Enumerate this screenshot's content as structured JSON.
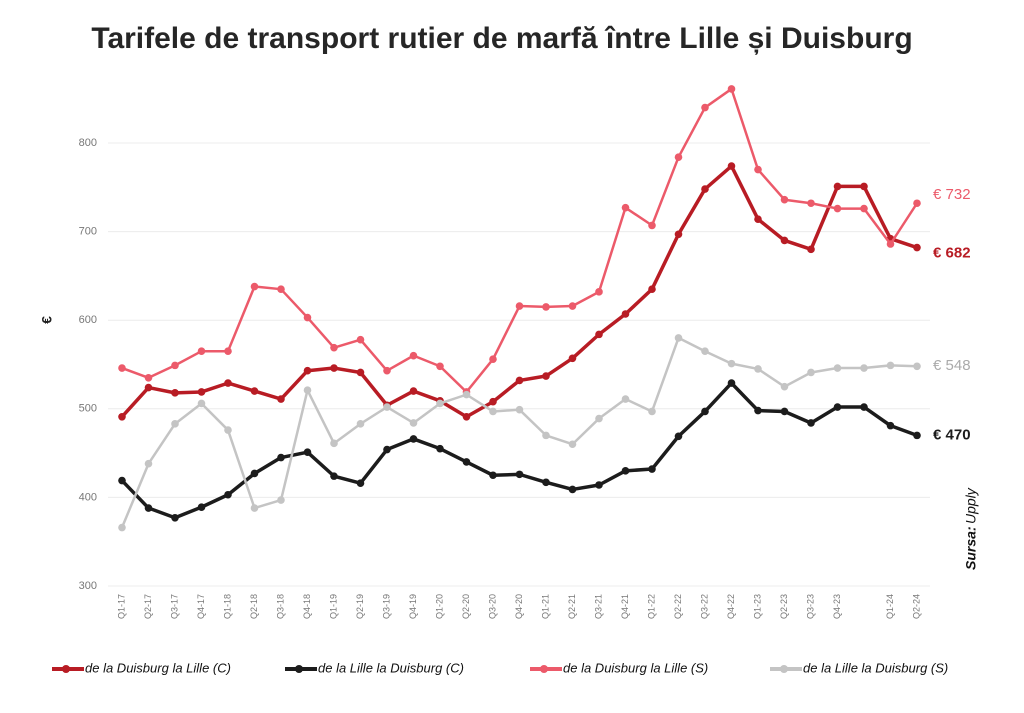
{
  "chart_data": {
    "type": "line",
    "title": "Tarifele de transport rutier de marfă între Lille și Duisburg",
    "y_label": "€",
    "source_label": "Sursa:",
    "source": "Upply",
    "categories": [
      "Q1-17",
      "Q2-17",
      "Q3-17",
      "Q4-17",
      "Q1-18",
      "Q2-18",
      "Q3-18",
      "Q4-18",
      "Q1-19",
      "Q2-19",
      "Q3-19",
      "Q4-19",
      "Q1-20",
      "Q2-20",
      "Q3-20",
      "Q4-20",
      "Q1-21",
      "Q2-21",
      "Q3-21",
      "Q4-21",
      "Q1-22",
      "Q2-22",
      "Q3-22",
      "Q4-22",
      "Q1-23",
      "Q2-23",
      "Q3-23",
      "Q4-23",
      null,
      "Q1-24",
      "Q2-24"
    ],
    "series": [
      {
        "name": "de la Duisburg la Lille (C)",
        "color": "#b81c24",
        "width": 3.5,
        "bold_label": true,
        "values": [
          491,
          524,
          518,
          519,
          529,
          520,
          511,
          543,
          546,
          541,
          504,
          520,
          509,
          491,
          508,
          532,
          537,
          557,
          584,
          607,
          635,
          697,
          748,
          774,
          714,
          690,
          680,
          751,
          751,
          692,
          682
        ],
        "value_labels": [
          null,
          null,
          null,
          null,
          null,
          null,
          null,
          null,
          null,
          null,
          null,
          null,
          null,
          null,
          null,
          null,
          null,
          null,
          null,
          null,
          null,
          null,
          null,
          null,
          null,
          null,
          null,
          null,
          null,
          null,
          "€ 682"
        ]
      },
      {
        "name": "de la Lille la Duisburg (C)",
        "color": "#1c1c1c",
        "width": 3.5,
        "bold_label": true,
        "values": [
          419,
          388,
          377,
          389,
          403,
          427,
          445,
          451,
          424,
          416,
          454,
          466,
          455,
          440,
          425,
          426,
          417,
          409,
          414,
          430,
          432,
          469,
          497,
          529,
          498,
          497,
          484,
          502,
          502,
          481,
          470
        ],
        "value_labels": [
          null,
          null,
          null,
          null,
          null,
          null,
          null,
          null,
          null,
          null,
          null,
          null,
          null,
          null,
          null,
          null,
          null,
          null,
          null,
          null,
          null,
          null,
          null,
          null,
          null,
          null,
          null,
          null,
          null,
          null,
          "€ 470"
        ]
      },
      {
        "name": "de la Duisburg la Lille (S)",
        "color": "#ec5a6a",
        "width": 2.5,
        "bold_label": false,
        "values": [
          546,
          535,
          549,
          565,
          565,
          638,
          635,
          603,
          569,
          578,
          543,
          560,
          548,
          519,
          556,
          616,
          615,
          616,
          632,
          727,
          707,
          784,
          840,
          861,
          770,
          736,
          732,
          726,
          726,
          686,
          732
        ],
        "value_labels": [
          null,
          null,
          null,
          null,
          null,
          null,
          null,
          null,
          null,
          null,
          null,
          null,
          null,
          null,
          null,
          null,
          null,
          null,
          null,
          null,
          null,
          null,
          null,
          null,
          null,
          null,
          null,
          null,
          null,
          null,
          "€ 732"
        ]
      },
      {
        "name": "de la Lille la Duisburg (S)",
        "color": "#c4c4c4",
        "width": 2.5,
        "bold_label": false,
        "values": [
          366,
          438,
          483,
          506,
          476,
          388,
          397,
          521,
          461,
          483,
          502,
          484,
          506,
          516,
          497,
          499,
          470,
          460,
          489,
          511,
          497,
          580,
          565,
          551,
          545,
          525,
          541,
          546,
          546,
          549,
          548
        ],
        "value_labels": [
          null,
          null,
          null,
          null,
          null,
          null,
          null,
          null,
          null,
          null,
          null,
          null,
          null,
          null,
          null,
          null,
          null,
          null,
          null,
          null,
          null,
          null,
          null,
          null,
          null,
          null,
          null,
          null,
          null,
          null,
          "€ 548"
        ]
      }
    ],
    "ylim": [
      300,
      900
    ],
    "yticks": [
      300,
      400,
      500,
      600,
      700,
      800
    ],
    "grid": true,
    "legend": "bottom"
  }
}
